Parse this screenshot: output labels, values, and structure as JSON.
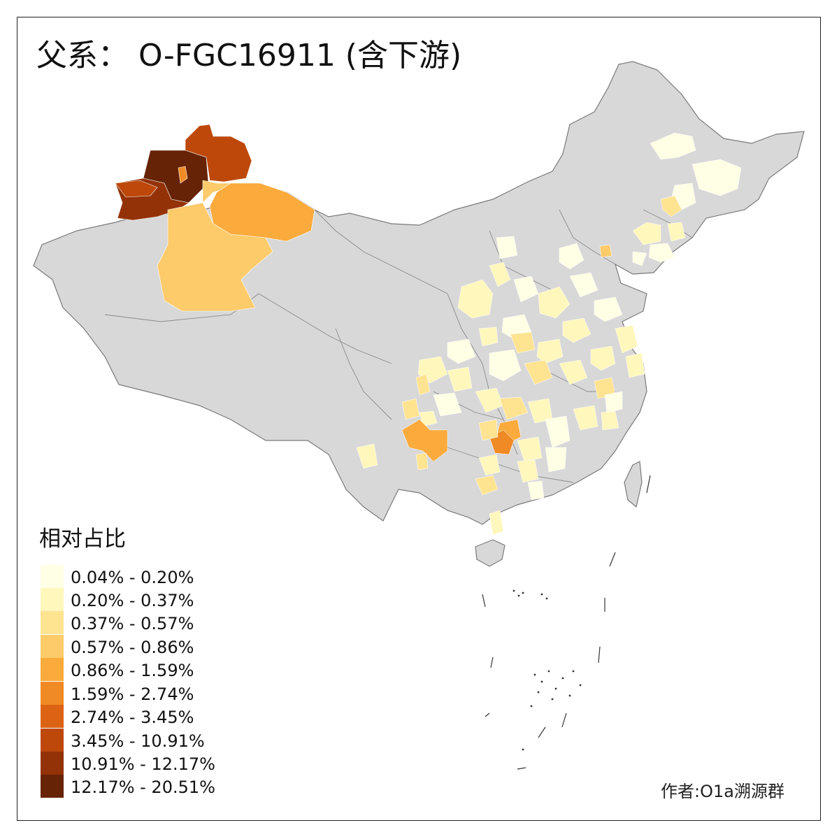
{
  "title": "父系： O-FGC16911 (含下游)",
  "legend": {
    "title": "相对占比",
    "items": [
      {
        "label": "0.04% - 0.20%",
        "color": "#FFFFE5"
      },
      {
        "label": "0.20% - 0.37%",
        "color": "#FFF7BC"
      },
      {
        "label": "0.37% - 0.57%",
        "color": "#FEE391"
      },
      {
        "label": "0.57% - 0.86%",
        "color": "#FECB6A"
      },
      {
        "label": "0.86% - 1.59%",
        "color": "#FBAA3C"
      },
      {
        "label": "1.59% - 2.74%",
        "color": "#F08A24"
      },
      {
        "label": "2.74% - 3.45%",
        "color": "#DC6314"
      },
      {
        "label": "3.45% - 10.91%",
        "color": "#BD480A"
      },
      {
        "label": "10.91% - 12.17%",
        "color": "#933207"
      },
      {
        "label": "12.17% - 20.51%",
        "color": "#672306"
      }
    ]
  },
  "credit": "作者:O1a溯源群",
  "map": {
    "no_data_color": "#D8D8D8",
    "border_color": "#7a7a7a"
  }
}
